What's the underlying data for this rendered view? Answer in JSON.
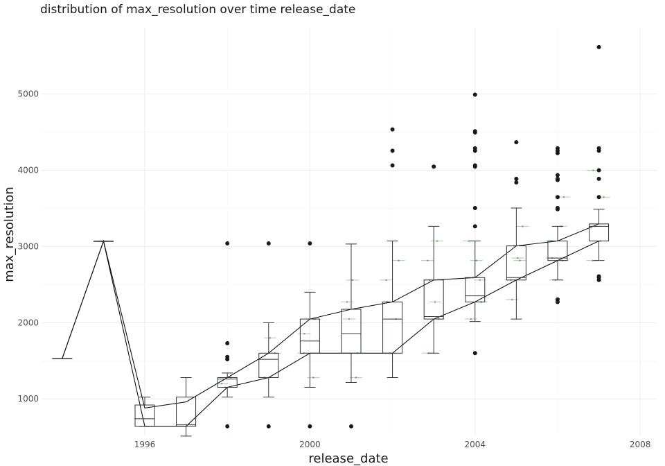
{
  "chart_data": {
    "type": "box",
    "title": "distribution of max_resolution over time release_date",
    "xlabel": "release_date",
    "ylabel": "max_resolution",
    "xlim": [
      1993.5,
      2008.4
    ],
    "ylim": [
      520,
      5870
    ],
    "x_ticks": [
      1996,
      2000,
      2004,
      2008
    ],
    "y_ticks": [
      1000,
      2000,
      3000,
      4000,
      5000
    ],
    "grid": true,
    "boxes": [
      {
        "x": 1994,
        "min": 1530,
        "q1": 1530,
        "median": 1530,
        "q3": 1530,
        "max": 1530,
        "outliers": []
      },
      {
        "x": 1995,
        "min": 3070,
        "q1": 3070,
        "median": 3070,
        "q3": 3070,
        "max": 3070,
        "outliers": []
      },
      {
        "x": 1996,
        "min": 640,
        "q1": 640,
        "median": 740,
        "q3": 920,
        "max": 1024,
        "outliers": []
      },
      {
        "x": 1997,
        "min": 512,
        "q1": 640,
        "median": 660,
        "q3": 1024,
        "max": 1280,
        "outliers": []
      },
      {
        "x": 1998,
        "min": 1024,
        "q1": 1152,
        "median": 1260,
        "q3": 1280,
        "max": 1340,
        "outliers": [
          640,
          1520,
          1550,
          1730,
          3040
        ]
      },
      {
        "x": 1999,
        "min": 1024,
        "q1": 1280,
        "median": 1520,
        "q3": 1600,
        "max": 2000,
        "outliers": [
          640,
          3040
        ]
      },
      {
        "x": 2000,
        "min": 1152,
        "q1": 1600,
        "median": 1760,
        "q3": 2048,
        "max": 2400,
        "outliers": [
          640,
          3040
        ]
      },
      {
        "x": 2001,
        "min": 1216,
        "q1": 1600,
        "median": 1856,
        "q3": 2176,
        "max": 3032,
        "outliers": [
          640
        ]
      },
      {
        "x": 2002,
        "min": 1280,
        "q1": 1600,
        "median": 2048,
        "q3": 2272,
        "max": 3072,
        "outliers": [
          4064,
          4256,
          4536
        ]
      },
      {
        "x": 2003,
        "min": 1600,
        "q1": 2048,
        "median": 2080,
        "q3": 2560,
        "max": 3264,
        "outliers": [
          4048
        ]
      },
      {
        "x": 2004,
        "min": 2016,
        "q1": 2272,
        "median": 2352,
        "q3": 2592,
        "max": 3072,
        "outliers": [
          1600,
          3264,
          3504,
          4048,
          4064,
          4256,
          4288,
          4496,
          4512,
          4992
        ]
      },
      {
        "x": 2005,
        "min": 2048,
        "q1": 2560,
        "median": 2592,
        "q3": 3008,
        "max": 3504,
        "outliers": [
          3840,
          3888,
          4368
        ]
      },
      {
        "x": 2006,
        "min": 2560,
        "q1": 2816,
        "median": 2848,
        "q3": 3072,
        "max": 3264,
        "outliers": [
          2272,
          2304,
          3488,
          3504,
          3648,
          3872,
          3888,
          3936,
          4224,
          4256,
          4288
        ]
      },
      {
        "x": 2007,
        "min": 2816,
        "q1": 3072,
        "median": 3264,
        "q3": 3296,
        "max": 3488,
        "outliers": [
          2560,
          2592,
          2608,
          3648,
          3888,
          4000,
          4256,
          4288,
          5616
        ]
      }
    ],
    "jitter_points": [
      {
        "x": 1998,
        "y": 1200
      },
      {
        "x": 1998,
        "y": 1280
      },
      {
        "x": 1998,
        "y": 1152
      },
      {
        "x": 1999,
        "y": 1600
      },
      {
        "x": 1999,
        "y": 1280
      },
      {
        "x": 1999,
        "y": 1800
      },
      {
        "x": 2000,
        "y": 2048
      },
      {
        "x": 2000,
        "y": 1600
      },
      {
        "x": 2000,
        "y": 1856
      },
      {
        "x": 2000,
        "y": 1280
      },
      {
        "x": 2001,
        "y": 2048
      },
      {
        "x": 2001,
        "y": 1600
      },
      {
        "x": 2001,
        "y": 2272
      },
      {
        "x": 2001,
        "y": 2560
      },
      {
        "x": 2001,
        "y": 1280
      },
      {
        "x": 2002,
        "y": 2560
      },
      {
        "x": 2002,
        "y": 2272
      },
      {
        "x": 2002,
        "y": 2048
      },
      {
        "x": 2002,
        "y": 1600
      },
      {
        "x": 2002,
        "y": 2816
      },
      {
        "x": 2003,
        "y": 2560
      },
      {
        "x": 2003,
        "y": 2272
      },
      {
        "x": 2003,
        "y": 2048
      },
      {
        "x": 2003,
        "y": 2816
      },
      {
        "x": 2003,
        "y": 1600
      },
      {
        "x": 2003,
        "y": 3072
      },
      {
        "x": 2004,
        "y": 2592
      },
      {
        "x": 2004,
        "y": 2272
      },
      {
        "x": 2004,
        "y": 2048
      },
      {
        "x": 2004,
        "y": 2816
      },
      {
        "x": 2004,
        "y": 2560
      },
      {
        "x": 2004,
        "y": 3072
      },
      {
        "x": 2005,
        "y": 2560
      },
      {
        "x": 2005,
        "y": 2816
      },
      {
        "x": 2005,
        "y": 3008
      },
      {
        "x": 2005,
        "y": 3264
      },
      {
        "x": 2005,
        "y": 2304
      },
      {
        "x": 2005,
        "y": 2848
      },
      {
        "x": 2006,
        "y": 2816
      },
      {
        "x": 2006,
        "y": 3072
      },
      {
        "x": 2006,
        "y": 2848
      },
      {
        "x": 2006,
        "y": 3264
      },
      {
        "x": 2006,
        "y": 2560
      },
      {
        "x": 2006,
        "y": 3648
      },
      {
        "x": 2007,
        "y": 3264
      },
      {
        "x": 2007,
        "y": 3072
      },
      {
        "x": 2007,
        "y": 3648
      },
      {
        "x": 2007,
        "y": 2816
      },
      {
        "x": 2007,
        "y": 4000
      }
    ],
    "mean_lines": [
      {
        "name": "",
        "points": [
          [
            1994,
            1530
          ],
          [
            1995,
            3070
          ],
          [
            1996,
            880
          ],
          [
            1997,
            960
          ],
          [
            1998,
            1280
          ],
          [
            1999,
            1600
          ],
          [
            2000,
            2048
          ],
          [
            2001,
            2176
          ],
          [
            2002,
            2272
          ],
          [
            2003,
            2560
          ],
          [
            2004,
            2592
          ],
          [
            2005,
            3008
          ],
          [
            2006,
            3072
          ],
          [
            2007,
            3296
          ]
        ]
      },
      {
        "name": "",
        "points": [
          [
            1994,
            1530
          ],
          [
            1995,
            3070
          ],
          [
            1996,
            640
          ],
          [
            1997,
            640
          ],
          [
            1998,
            1152
          ],
          [
            1999,
            1280
          ],
          [
            2000,
            1600
          ],
          [
            2001,
            1600
          ],
          [
            2002,
            1600
          ],
          [
            2003,
            2048
          ],
          [
            2004,
            2272
          ],
          [
            2005,
            2560
          ],
          [
            2006,
            2816
          ],
          [
            2007,
            3072
          ]
        ]
      }
    ],
    "colors": {
      "box": "#333333",
      "jitter": "#2e7d32",
      "outlier": "#1a1a1a",
      "grid": "#ebebeb"
    }
  }
}
